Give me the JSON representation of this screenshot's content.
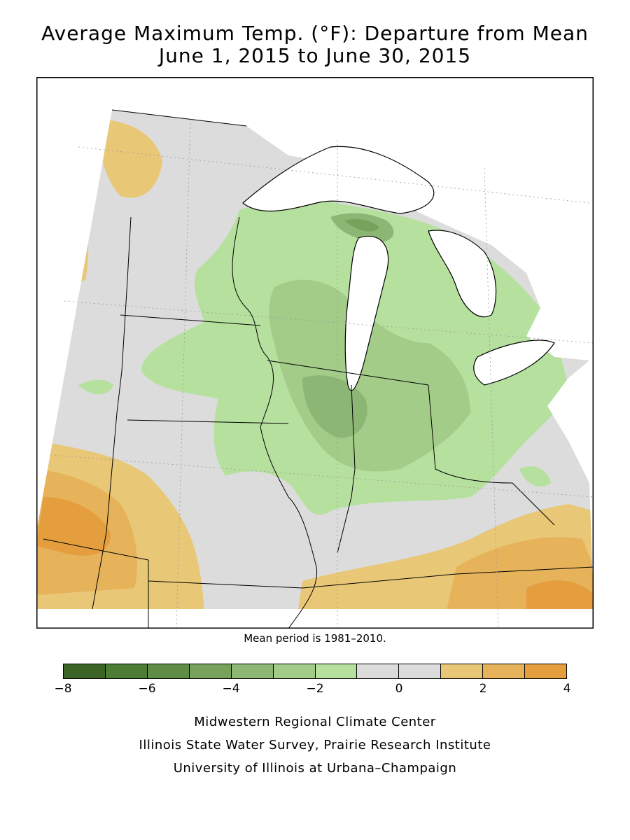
{
  "title_line1": "Average Maximum Temp. (°F): Departure from Mean",
  "title_line2": "June 1, 2015 to June 30, 2015",
  "mean_note": "Mean period is 1981–2010.",
  "legend": {
    "colors": [
      "#3b6426",
      "#4d7c35",
      "#5f8d46",
      "#76a25c",
      "#8cb673",
      "#a2cc88",
      "#b6e09e",
      "#dcdcdc",
      "#dcdcdc",
      "#e8c776",
      "#e6b25a",
      "#e49e3e"
    ],
    "ticks": [
      {
        "value": -8,
        "label": "−8"
      },
      {
        "value": -6,
        "label": "−6"
      },
      {
        "value": -4,
        "label": "−4"
      },
      {
        "value": -2,
        "label": "−2"
      },
      {
        "value": 0,
        "label": "0"
      },
      {
        "value": 2,
        "label": "2"
      },
      {
        "value": 4,
        "label": "4"
      }
    ],
    "min": -8,
    "max": 4
  },
  "credits": {
    "line1": "Midwestern Regional Climate Center",
    "line2": "Illinois State Water Survey, Prairie Research Institute",
    "line3": "University of Illinois at Urbana–Champaign"
  }
}
